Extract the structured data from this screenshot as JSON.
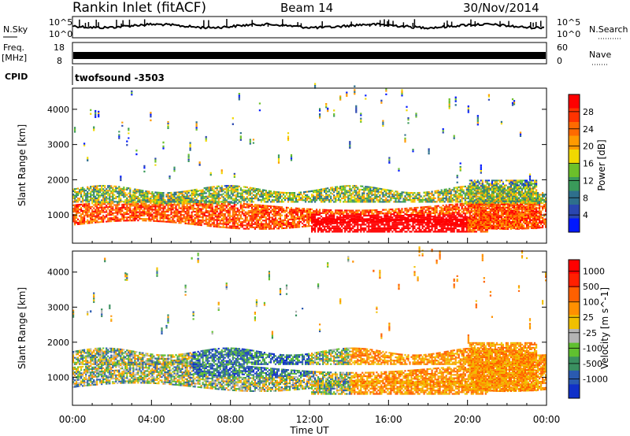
{
  "header": {
    "station": "Rankin Inlet (fitACF)",
    "beam": "Beam 14",
    "date": "30/Nov/2014"
  },
  "top_panels": {
    "nsky": {
      "left_label": "N.Sky",
      "right_label": "N.Search",
      "tick_top": "10^5",
      "tick_bottom": "10^0"
    },
    "freq": {
      "left_label": "Freq.",
      "left_unit": "[MHz]",
      "left_ticks": [
        "18",
        "8"
      ],
      "right_label": "Nave",
      "right_ticks": [
        "60",
        "0"
      ]
    },
    "cpid": {
      "label": "CPID",
      "value": "twofsound -3503"
    }
  },
  "chart_data": [
    {
      "type": "heatmap",
      "panel": "power",
      "ylabel": "Slant Range [km]",
      "ylim": [
        200,
        4600
      ],
      "yticks": [
        "1000",
        "2000",
        "3000",
        "4000"
      ],
      "x": [
        "00:00",
        "04:00",
        "08:00",
        "12:00",
        "16:00",
        "20:00",
        "00:00"
      ],
      "colorbar": {
        "label": "Power [dB]",
        "ticks": [
          "4",
          "8",
          "12",
          "16",
          "20",
          "24",
          "28"
        ],
        "colors": [
          "#0018ff",
          "#2a46b0",
          "#2e6f8c",
          "#3a9a5a",
          "#6cc02a",
          "#f0d800",
          "#ff9a00",
          "#ff6a00",
          "#ff3300",
          "#ff0000"
        ]
      },
      "bands": [
        {
          "t": [
            0,
            24
          ],
          "range": [
            600,
            1400
          ],
          "value": 26
        },
        {
          "t": [
            0,
            24
          ],
          "range": [
            1400,
            1800
          ],
          "value": 14
        },
        {
          "t": [
            12,
            20
          ],
          "range": [
            500,
            1000
          ],
          "value": 28
        }
      ]
    },
    {
      "type": "heatmap",
      "panel": "velocity",
      "ylabel": "Slant Range [km]",
      "ylim": [
        200,
        4600
      ],
      "yticks": [
        "1000",
        "2000",
        "3000",
        "4000"
      ],
      "x": [
        "00:00",
        "04:00",
        "08:00",
        "12:00",
        "16:00",
        "20:00",
        "00:00"
      ],
      "colorbar": {
        "label": "Velocity [m s^-1]",
        "ticks": [
          "1000",
          "500",
          "100",
          "25",
          "-25",
          "-100",
          "-500",
          "-1000"
        ],
        "colors": [
          "#1030c8",
          "#2a5ab0",
          "#3a9060",
          "#60c030",
          "#b4b4b4",
          "#f0c000",
          "#ff9000",
          "#ff6000",
          "#ff2000",
          "#ff0000"
        ]
      }
    }
  ],
  "xaxis": {
    "label": "Time UT",
    "ticks": [
      "00:00",
      "04:00",
      "08:00",
      "12:00",
      "16:00",
      "20:00",
      "00:00"
    ]
  }
}
